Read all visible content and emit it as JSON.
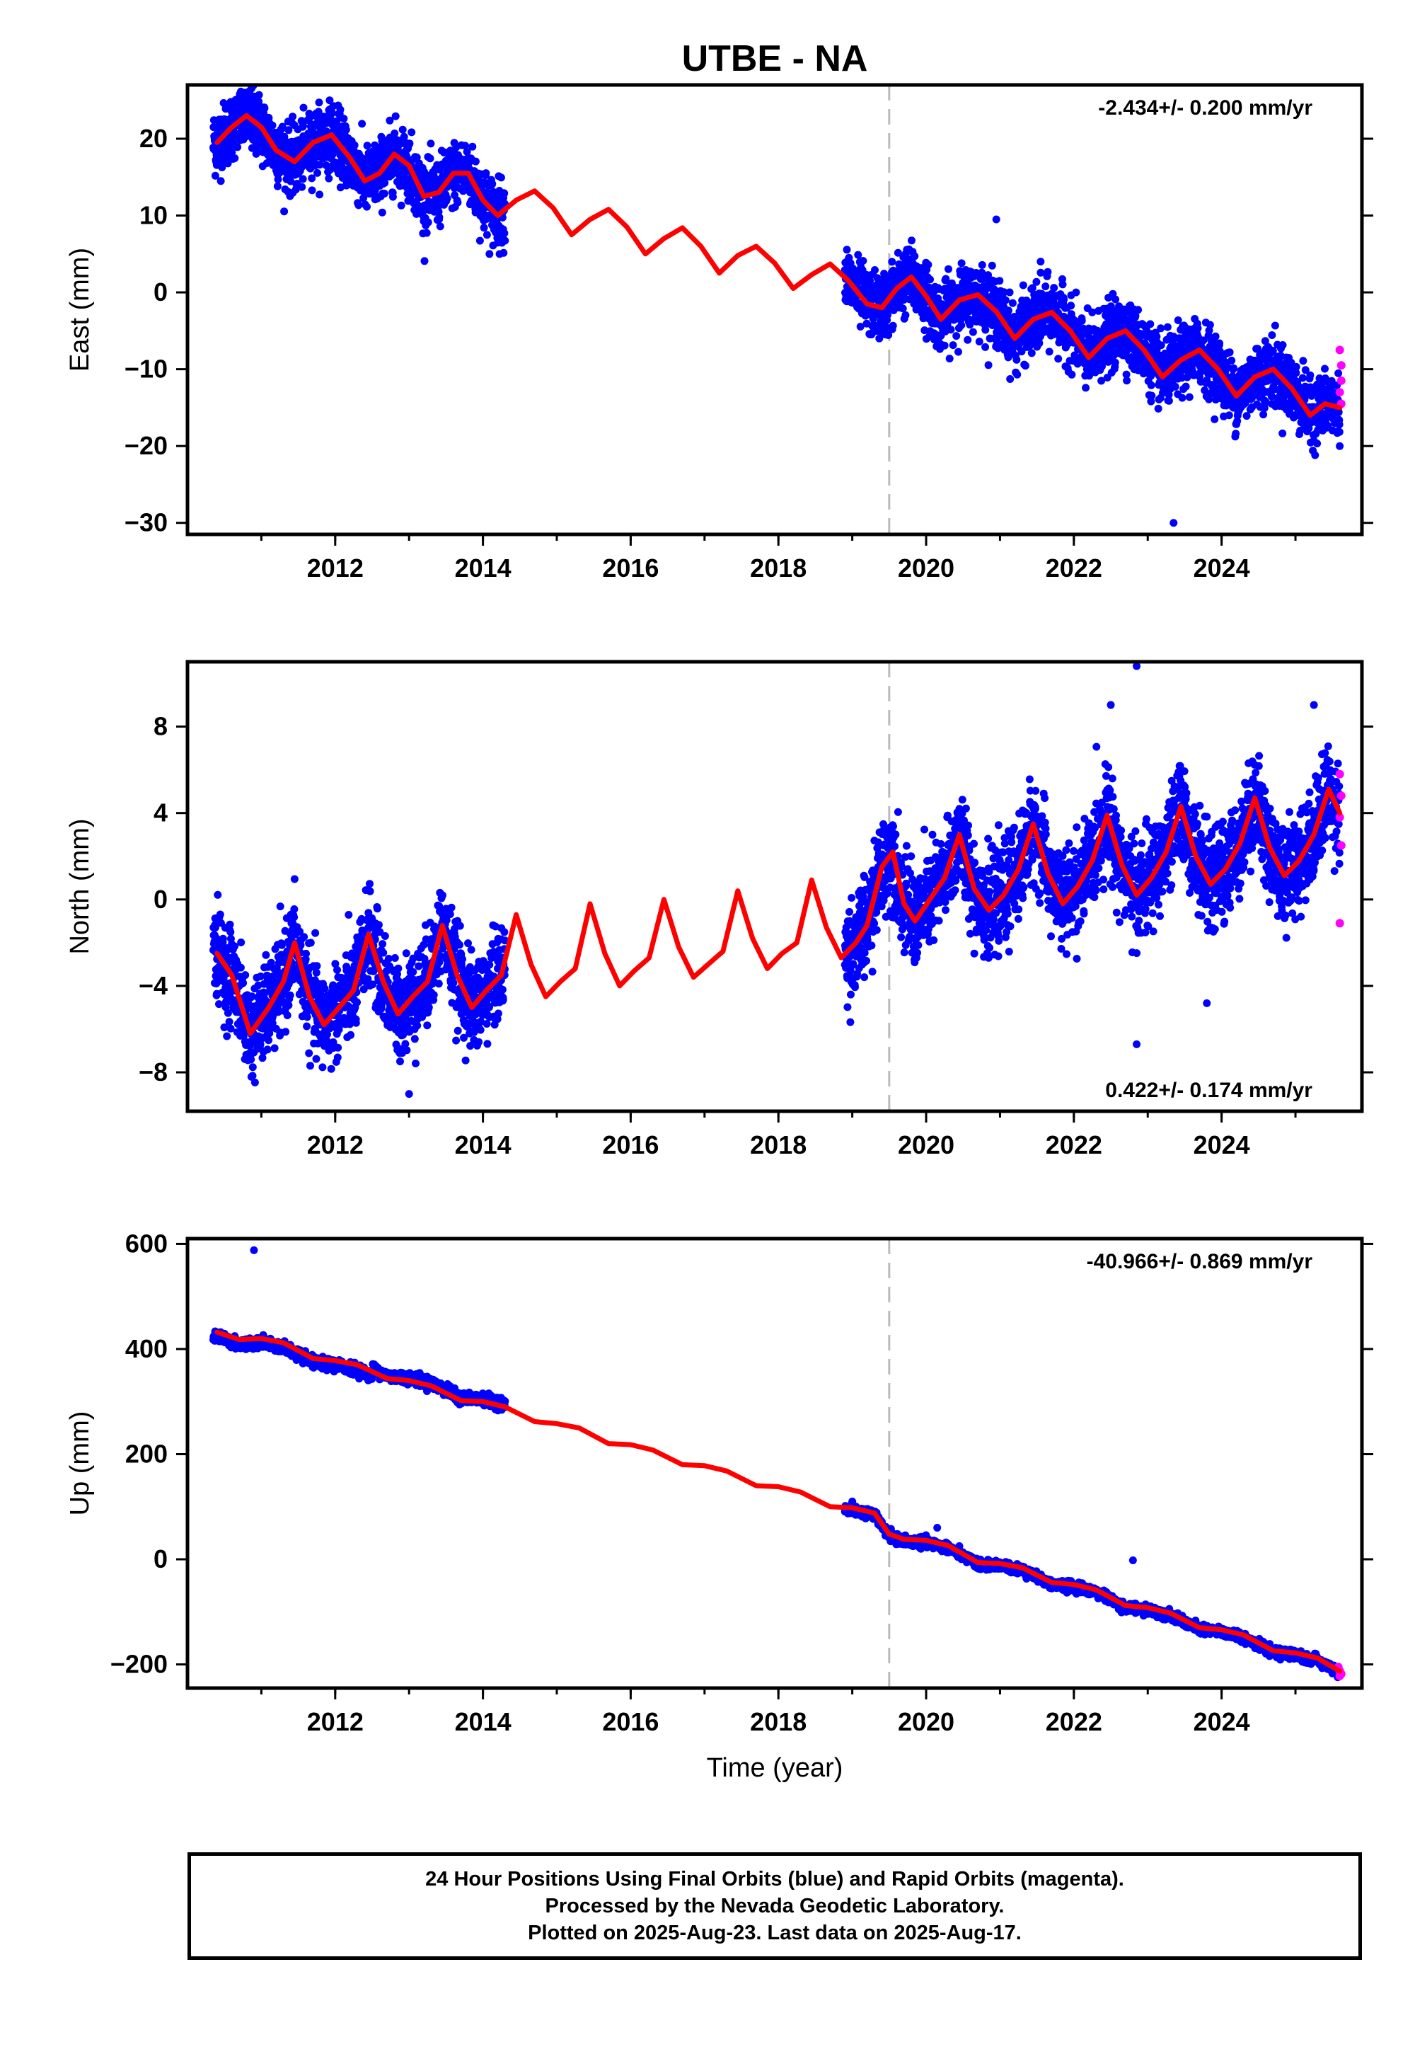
{
  "title": "UTBE - NA",
  "xlabel": "Time (year)",
  "colors": {
    "final_orbits": "#0000ff",
    "rapid_orbits": "#ff00ff",
    "model": "#ff0000",
    "event_line": "#bbbbbb"
  },
  "footer": {
    "line1": "24 Hour Positions Using Final Orbits (blue) and Rapid Orbits (magenta).",
    "line2": "Processed by the Nevada Geodetic Laboratory.",
    "line3": "Plotted on 2025-Aug-23. Last data on 2025-Aug-17."
  },
  "chart_data": [
    {
      "type": "scatter",
      "ylabel": "East (mm)",
      "rate_label": "-2.434+/- 0.200 mm/yr",
      "rate_position": "top-right",
      "xlim": [
        2010.0,
        2025.9
      ],
      "ylim": [
        -31.5,
        27
      ],
      "x_ticks": [
        2012,
        2014,
        2016,
        2018,
        2020,
        2022,
        2024
      ],
      "y_ticks": [
        -30,
        -20,
        -10,
        0,
        10,
        20
      ],
      "event_line_x": 2019.5,
      "model": {
        "name": "model fit",
        "x": [
          2010.4,
          2010.6,
          2010.8,
          2011.0,
          2011.2,
          2011.45,
          2011.7,
          2011.95,
          2012.2,
          2012.4,
          2012.6,
          2012.8,
          2013.0,
          2013.2,
          2013.4,
          2013.6,
          2013.8,
          2014.0,
          2014.2,
          2014.45,
          2014.7,
          2014.95,
          2015.2,
          2015.45,
          2015.7,
          2015.95,
          2016.2,
          2016.45,
          2016.7,
          2016.95,
          2017.2,
          2017.45,
          2017.7,
          2017.95,
          2018.2,
          2018.45,
          2018.7,
          2018.95,
          2019.2,
          2019.4,
          2019.6,
          2019.8,
          2020.0,
          2020.2,
          2020.45,
          2020.7,
          2020.95,
          2021.2,
          2021.45,
          2021.7,
          2021.95,
          2022.2,
          2022.45,
          2022.7,
          2022.95,
          2023.2,
          2023.45,
          2023.7,
          2023.95,
          2024.2,
          2024.45,
          2024.7,
          2024.95,
          2025.2,
          2025.4,
          2025.6
        ],
        "y": [
          19.5,
          21.5,
          23.0,
          21.5,
          18.5,
          17.0,
          19.5,
          20.5,
          17.5,
          14.5,
          15.5,
          18.0,
          16.5,
          12.5,
          13.0,
          15.5,
          15.5,
          12.0,
          10.0,
          12.0,
          13.2,
          11.0,
          7.5,
          9.5,
          10.8,
          8.5,
          5.0,
          7.0,
          8.4,
          6.0,
          2.5,
          4.8,
          6.0,
          3.8,
          0.5,
          2.3,
          3.7,
          1.5,
          -1.5,
          -2.0,
          0.5,
          2.0,
          -0.5,
          -3.5,
          -1.0,
          -0.3,
          -2.5,
          -6.0,
          -3.5,
          -2.6,
          -5.0,
          -8.5,
          -6.0,
          -5.0,
          -7.5,
          -11.0,
          -8.8,
          -7.5,
          -10.0,
          -13.5,
          -11.0,
          -10.0,
          -12.5,
          -16.0,
          -14.5,
          -15.0
        ]
      },
      "data_blocks": [
        {
          "start": 2010.35,
          "end": 2012.5,
          "amp": 5,
          "offset": 0
        },
        {
          "start": 2012.5,
          "end": 2014.3,
          "amp": 5,
          "offset": 0
        },
        {
          "start": 2018.9,
          "end": 2025.6,
          "amp": 5,
          "offset": 0
        }
      ],
      "outliers": [
        [
          2010.9,
          25.5
        ],
        [
          2020.95,
          9.5
        ],
        [
          2021.55,
          4.0
        ],
        [
          2023.35,
          -30.0
        ]
      ],
      "rapid_points": [
        [
          2025.6,
          -7.5
        ],
        [
          2025.62,
          -9.5
        ],
        [
          2025.62,
          -11.5
        ],
        [
          2025.6,
          -13.0
        ],
        [
          2025.62,
          -14.5
        ]
      ]
    },
    {
      "type": "scatter",
      "ylabel": "North (mm)",
      "rate_label": "0.422+/- 0.174 mm/yr",
      "rate_position": "bottom-right",
      "xlim": [
        2010.0,
        2025.9
      ],
      "ylim": [
        -9.8,
        11
      ],
      "x_ticks": [
        2012,
        2014,
        2016,
        2018,
        2020,
        2022,
        2024
      ],
      "y_ticks": [
        -8,
        -4,
        0,
        4,
        8
      ],
      "event_line_x": 2019.5,
      "model": {
        "name": "model fit",
        "x": [
          2010.4,
          2010.6,
          2010.85,
          2011.1,
          2011.3,
          2011.45,
          2011.65,
          2011.85,
          2012.05,
          2012.25,
          2012.45,
          2012.65,
          2012.85,
          2013.05,
          2013.25,
          2013.45,
          2013.65,
          2013.85,
          2014.05,
          2014.25,
          2014.45,
          2014.65,
          2014.85,
          2015.05,
          2015.25,
          2015.45,
          2015.65,
          2015.85,
          2016.05,
          2016.25,
          2016.45,
          2016.65,
          2016.85,
          2017.05,
          2017.25,
          2017.45,
          2017.65,
          2017.85,
          2018.05,
          2018.25,
          2018.45,
          2018.65,
          2018.85,
          2019.05,
          2019.2,
          2019.4,
          2019.55,
          2019.7,
          2019.85,
          2020.05,
          2020.25,
          2020.45,
          2020.65,
          2020.85,
          2021.05,
          2021.25,
          2021.45,
          2021.65,
          2021.85,
          2022.05,
          2022.25,
          2022.45,
          2022.65,
          2022.85,
          2023.05,
          2023.25,
          2023.45,
          2023.65,
          2023.85,
          2024.05,
          2024.25,
          2024.45,
          2024.65,
          2024.85,
          2025.05,
          2025.25,
          2025.45,
          2025.6
        ],
        "y": [
          -2.5,
          -3.5,
          -6.2,
          -5.0,
          -3.8,
          -2.0,
          -4.5,
          -5.8,
          -5.0,
          -4.2,
          -1.6,
          -3.8,
          -5.3,
          -4.5,
          -3.8,
          -1.2,
          -3.5,
          -5.0,
          -4.2,
          -3.5,
          -0.7,
          -3.0,
          -4.5,
          -3.8,
          -3.2,
          -0.2,
          -2.5,
          -4.0,
          -3.3,
          -2.7,
          0.0,
          -2.2,
          -3.6,
          -3.0,
          -2.4,
          0.4,
          -1.8,
          -3.2,
          -2.5,
          -2.0,
          0.9,
          -1.3,
          -2.7,
          -2.0,
          -1.2,
          1.5,
          2.2,
          -0.2,
          -1.0,
          0.0,
          1.0,
          3.0,
          0.5,
          -0.5,
          0.2,
          1.4,
          3.5,
          1.2,
          -0.2,
          0.6,
          1.8,
          3.9,
          1.6,
          0.2,
          1.0,
          2.2,
          4.3,
          2.0,
          0.7,
          1.4,
          2.6,
          4.7,
          2.4,
          1.1,
          1.8,
          3.0,
          5.1,
          4.0
        ]
      },
      "data_blocks": [
        {
          "start": 2010.35,
          "end": 2012.5,
          "amp": 2.5,
          "offset": 0
        },
        {
          "start": 2012.5,
          "end": 2014.3,
          "amp": 2.5,
          "offset": 0
        },
        {
          "start": 2018.9,
          "end": 2025.6,
          "amp": 2.6,
          "offset": 0
        }
      ],
      "outliers": [
        [
          2022.85,
          10.8
        ],
        [
          2022.5,
          9.0
        ],
        [
          2025.25,
          9.0
        ],
        [
          2022.85,
          -6.7
        ],
        [
          2013.0,
          -9.0
        ],
        [
          2023.8,
          -4.8
        ]
      ],
      "rapid_points": [
        [
          2025.6,
          5.8
        ],
        [
          2025.62,
          4.8
        ],
        [
          2025.6,
          3.8
        ],
        [
          2025.62,
          2.5
        ],
        [
          2025.6,
          -1.1
        ]
      ]
    },
    {
      "type": "scatter",
      "ylabel": "Up (mm)",
      "rate_label": "-40.966+/- 0.869 mm/yr",
      "rate_position": "top-right",
      "xlim": [
        2010.0,
        2025.9
      ],
      "ylim": [
        -245,
        610
      ],
      "x_ticks": [
        2012,
        2014,
        2016,
        2018,
        2020,
        2022,
        2024
      ],
      "y_ticks": [
        -200,
        0,
        200,
        400,
        600
      ],
      "event_line_x": 2019.5,
      "model": {
        "name": "model fit",
        "x": [
          2010.4,
          2010.7,
          2011.0,
          2011.3,
          2011.7,
          2012.0,
          2012.3,
          2012.7,
          2013.0,
          2013.3,
          2013.7,
          2014.0,
          2014.3,
          2014.7,
          2015.0,
          2015.3,
          2015.7,
          2016.0,
          2016.3,
          2016.7,
          2017.0,
          2017.3,
          2017.7,
          2018.0,
          2018.3,
          2018.7,
          2019.0,
          2019.3,
          2019.5,
          2019.7,
          2020.0,
          2020.3,
          2020.7,
          2021.0,
          2021.3,
          2021.7,
          2022.0,
          2022.3,
          2022.7,
          2023.0,
          2023.3,
          2023.7,
          2024.0,
          2024.3,
          2024.7,
          2025.0,
          2025.3,
          2025.6
        ],
        "y": [
          432,
          418,
          420,
          412,
          382,
          378,
          370,
          344,
          340,
          330,
          302,
          300,
          290,
          262,
          258,
          250,
          220,
          218,
          208,
          180,
          178,
          168,
          140,
          138,
          128,
          100,
          98,
          88,
          48,
          38,
          36,
          26,
          -6,
          -8,
          -16,
          -44,
          -48,
          -58,
          -88,
          -92,
          -102,
          -130,
          -134,
          -144,
          -174,
          -178,
          -188,
          -213
        ]
      },
      "data_blocks": [
        {
          "start": 2010.35,
          "end": 2012.5,
          "amp": 12,
          "offset": -8
        },
        {
          "start": 2012.5,
          "end": 2014.3,
          "amp": 12,
          "offset": 5
        },
        {
          "start": 2018.9,
          "end": 2025.6,
          "amp": 10,
          "offset": -4
        }
      ],
      "outliers": [
        [
          2010.9,
          588
        ],
        [
          2022.8,
          -2
        ],
        [
          2020.15,
          60
        ],
        [
          2019.0,
          110
        ]
      ],
      "rapid_points": [
        [
          2025.58,
          -205
        ],
        [
          2025.6,
          -212
        ],
        [
          2025.62,
          -218
        ],
        [
          2025.6,
          -222
        ]
      ]
    }
  ]
}
